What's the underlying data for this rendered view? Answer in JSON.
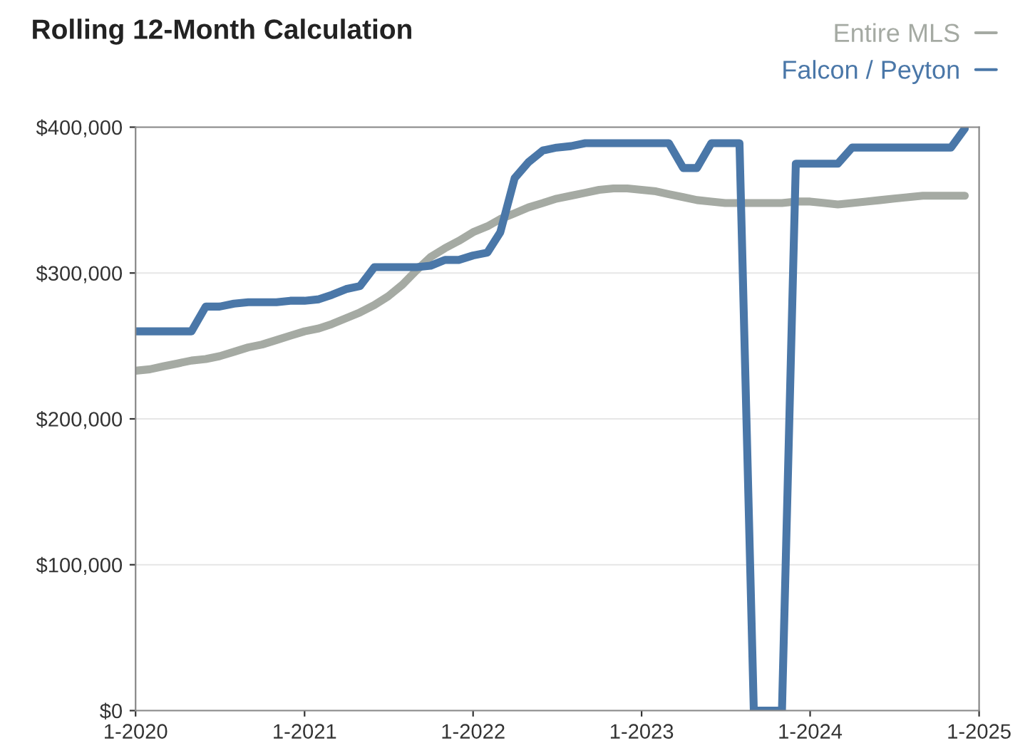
{
  "chart_data": {
    "type": "line",
    "title": "Rolling 12-Month Calculation",
    "x": [
      "2020-01",
      "2020-02",
      "2020-03",
      "2020-04",
      "2020-05",
      "2020-06",
      "2020-07",
      "2020-08",
      "2020-09",
      "2020-10",
      "2020-11",
      "2020-12",
      "2021-01",
      "2021-02",
      "2021-03",
      "2021-04",
      "2021-05",
      "2021-06",
      "2021-07",
      "2021-08",
      "2021-09",
      "2021-10",
      "2021-11",
      "2021-12",
      "2022-01",
      "2022-02",
      "2022-03",
      "2022-04",
      "2022-05",
      "2022-06",
      "2022-07",
      "2022-08",
      "2022-09",
      "2022-10",
      "2022-11",
      "2022-12",
      "2023-01",
      "2023-02",
      "2023-03",
      "2023-04",
      "2023-05",
      "2023-06",
      "2023-07",
      "2023-08",
      "2023-09",
      "2023-10",
      "2023-11",
      "2023-12",
      "2024-01",
      "2024-02",
      "2024-03",
      "2024-04",
      "2024-05",
      "2024-06",
      "2024-07",
      "2024-08",
      "2024-09",
      "2024-10",
      "2024-11",
      "2024-12"
    ],
    "series": [
      {
        "name": "Entire MLS",
        "color": "#a5aaa3",
        "values": [
          233000,
          234000,
          236000,
          238000,
          240000,
          241000,
          243000,
          246000,
          249000,
          251000,
          254000,
          257000,
          260000,
          262000,
          265000,
          269000,
          273000,
          278000,
          284000,
          292000,
          302000,
          311000,
          317000,
          322000,
          328000,
          332000,
          337000,
          341000,
          345000,
          348000,
          351000,
          353000,
          355000,
          357000,
          358000,
          358000,
          357000,
          356000,
          354000,
          352000,
          350000,
          349000,
          348000,
          348000,
          348000,
          348000,
          348000,
          349000,
          349000,
          348000,
          347000,
          348000,
          349000,
          350000,
          351000,
          352000,
          353000,
          353000,
          353000,
          353000
        ]
      },
      {
        "name": "Falcon / Peyton",
        "color": "#4a77a8",
        "values": [
          260000,
          260000,
          260000,
          260000,
          260000,
          277000,
          277000,
          279000,
          280000,
          280000,
          280000,
          281000,
          281000,
          282000,
          285000,
          289000,
          291000,
          304000,
          304000,
          304000,
          304000,
          305000,
          309000,
          309000,
          312000,
          314000,
          328000,
          365000,
          376000,
          384000,
          386000,
          387000,
          389000,
          389000,
          389000,
          389000,
          389000,
          389000,
          389000,
          372000,
          372000,
          389000,
          389000,
          389000,
          0,
          0,
          0,
          375000,
          375000,
          375000,
          375000,
          386000,
          386000,
          386000,
          386000,
          386000,
          386000,
          386000,
          386000,
          399000
        ]
      }
    ],
    "xlim": [
      "2020-01",
      "2025-01"
    ],
    "xticks": [
      {
        "value": "2020-01",
        "label": "1-2020"
      },
      {
        "value": "2021-01",
        "label": "1-2021"
      },
      {
        "value": "2022-01",
        "label": "1-2022"
      },
      {
        "value": "2023-01",
        "label": "1-2023"
      },
      {
        "value": "2024-01",
        "label": "1-2024"
      },
      {
        "value": "2025-01",
        "label": "1-2025"
      }
    ],
    "ylim": [
      0,
      400000
    ],
    "yticks": [
      {
        "value": 0,
        "label": "$0"
      },
      {
        "value": 100000,
        "label": "$100,000"
      },
      {
        "value": 200000,
        "label": "$200,000"
      },
      {
        "value": 300000,
        "label": "$300,000"
      },
      {
        "value": 400000,
        "label": "$400,000"
      }
    ],
    "grid": "y",
    "legend": "top right",
    "marker": "none",
    "line_style": "solid"
  }
}
